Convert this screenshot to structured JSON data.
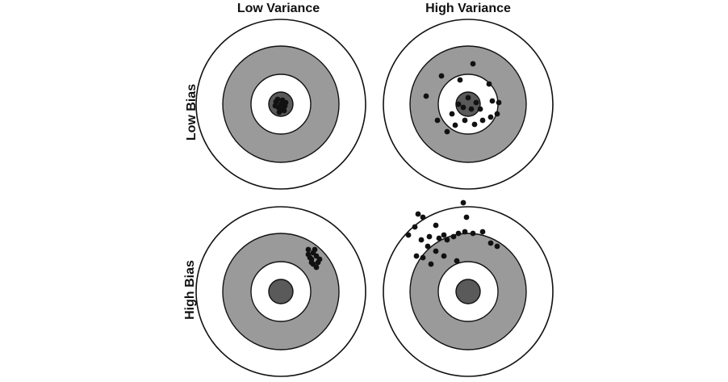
{
  "labels": {
    "col_low_variance": "Low Variance",
    "col_high_variance": "High Variance",
    "row_low_bias": "Low Bias",
    "row_high_bias": "High Bias"
  },
  "colors": {
    "background": "#ffffff",
    "ring_stroke": "#111111",
    "outer_fill": "#ffffff",
    "middle_fill": "#9a9a9a",
    "inner_fill": "#ffffff",
    "bullseye_fill": "#5a5a5a",
    "shot_fill": "#111111"
  },
  "targets": [
    {
      "id": "low-bias-low-variance",
      "row": "low_bias",
      "col": "low_variance"
    },
    {
      "id": "low-bias-high-variance",
      "row": "low_bias",
      "col": "high_variance"
    },
    {
      "id": "high-bias-low-variance",
      "row": "high_bias",
      "col": "low_variance"
    },
    {
      "id": "high-bias-high-variance",
      "row": "high_bias",
      "col": "high_variance"
    }
  ]
}
